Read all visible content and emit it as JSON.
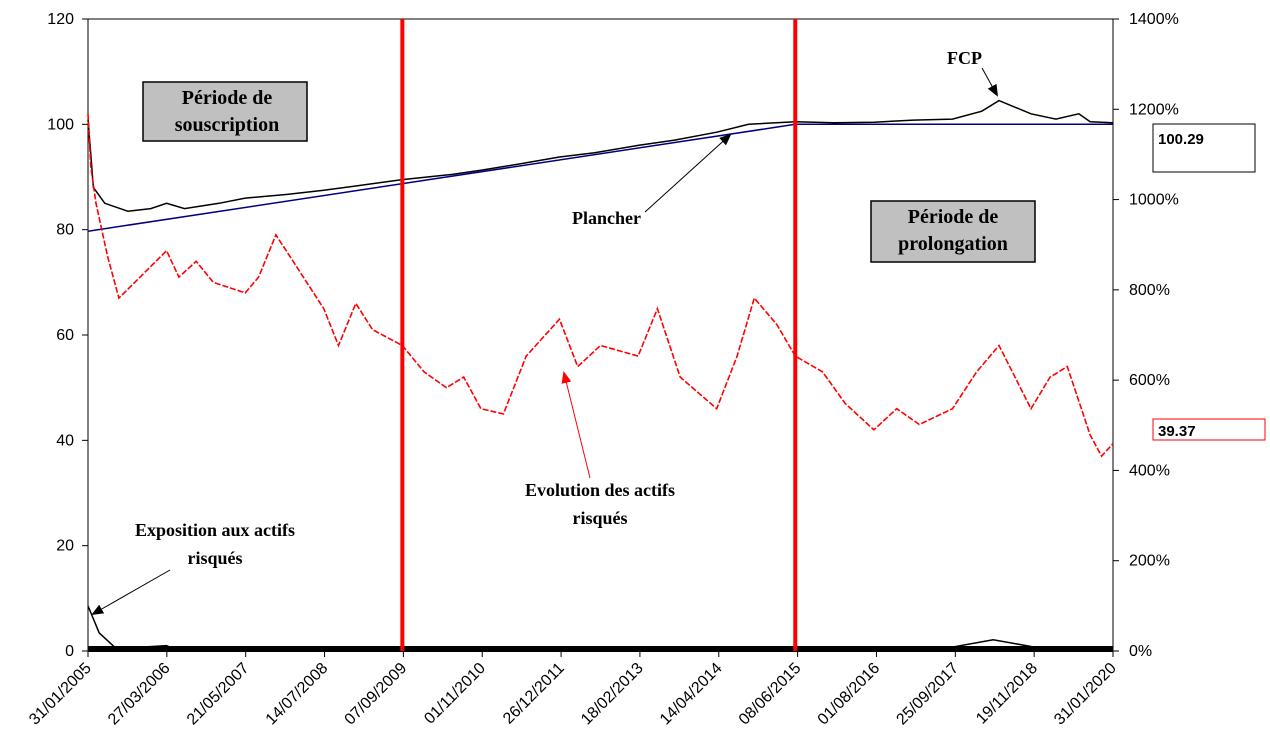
{
  "chart_data": {
    "type": "line",
    "x_tick_labels": [
      "31/01/2005",
      "27/03/2006",
      "21/05/2007",
      "14/07/2008",
      "07/09/2009",
      "01/11/2010",
      "26/12/2011",
      "18/02/2013",
      "14/04/2014",
      "08/06/2015",
      "01/08/2016",
      "25/09/2017",
      "19/11/2018",
      "31/01/2020"
    ],
    "y_left": {
      "ylim": [
        0,
        120
      ],
      "ticks": [
        0,
        20,
        40,
        60,
        80,
        100,
        120
      ]
    },
    "y_right": {
      "ylim": [
        0,
        14
      ],
      "ticks": [
        "0%",
        "200%",
        "400%",
        "600%",
        "800%",
        "1000%",
        "1200%",
        "1400%"
      ]
    },
    "series": [
      {
        "name": "FCP",
        "axis": "left",
        "color": "#000000",
        "points": [
          [
            "31/01/2005",
            101
          ],
          [
            "01/03/2005",
            88
          ],
          [
            "01/05/2005",
            85
          ],
          [
            "01/09/2005",
            83.5
          ],
          [
            "01/01/2006",
            84
          ],
          [
            "27/03/2006",
            85
          ],
          [
            "01/07/2006",
            84
          ],
          [
            "01/01/2007",
            85
          ],
          [
            "21/05/2007",
            86
          ],
          [
            "01/01/2008",
            86.7
          ],
          [
            "14/07/2008",
            87.5
          ],
          [
            "01/01/2009",
            88.3
          ],
          [
            "07/09/2009",
            89.5
          ],
          [
            "01/06/2010",
            90.5
          ],
          [
            "01/11/2010",
            91.3
          ],
          [
            "01/06/2011",
            92.5
          ],
          [
            "26/12/2011",
            93.8
          ],
          [
            "01/07/2012",
            94.6
          ],
          [
            "18/02/2013",
            96
          ],
          [
            "01/09/2013",
            97
          ],
          [
            "14/04/2014",
            98.5
          ],
          [
            "01/10/2014",
            100
          ],
          [
            "08/06/2015",
            100.5
          ],
          [
            "01/01/2016",
            100.3
          ],
          [
            "01/08/2016",
            100.4
          ],
          [
            "01/03/2017",
            100.8
          ],
          [
            "25/09/2017",
            101
          ],
          [
            "01/03/2018",
            102.5
          ],
          [
            "01/06/2018",
            104.5
          ],
          [
            "19/11/2018",
            102
          ],
          [
            "01/04/2019",
            101
          ],
          [
            "01/08/2019",
            102
          ],
          [
            "01/10/2019",
            100.5
          ],
          [
            "31/01/2020",
            100.29
          ]
        ],
        "last_value": "100.29"
      },
      {
        "name": "Plancher",
        "axis": "left",
        "color": "#000080",
        "points": [
          [
            "31/01/2005",
            79.7
          ],
          [
            "08/06/2015",
            100
          ],
          [
            "31/01/2020",
            100
          ]
        ]
      },
      {
        "name": "Evolution des actifs risqués",
        "axis": "left",
        "color": "#ff0000",
        "points": [
          [
            "31/01/2005",
            102
          ],
          [
            "15/02/2005",
            92
          ],
          [
            "15/03/2005",
            85
          ],
          [
            "15/05/2005",
            75
          ],
          [
            "15/07/2005",
            67
          ],
          [
            "27/03/2006",
            76
          ],
          [
            "01/06/2006",
            71
          ],
          [
            "01/09/2006",
            74
          ],
          [
            "01/12/2006",
            70
          ],
          [
            "21/05/2007",
            68
          ],
          [
            "01/08/2007",
            71
          ],
          [
            "01/11/2007",
            79
          ],
          [
            "01/02/2008",
            74
          ],
          [
            "14/07/2008",
            65
          ],
          [
            "01/10/2008",
            58
          ],
          [
            "01/01/2009",
            66
          ],
          [
            "01/04/2009",
            61
          ],
          [
            "07/09/2009",
            58
          ],
          [
            "01/01/2010",
            53
          ],
          [
            "01/05/2010",
            50
          ],
          [
            "01/08/2010",
            52
          ],
          [
            "01/11/2010",
            46
          ],
          [
            "01/03/2011",
            45
          ],
          [
            "01/07/2011",
            56
          ],
          [
            "26/12/2011",
            63
          ],
          [
            "01/04/2012",
            54
          ],
          [
            "01/08/2012",
            58
          ],
          [
            "18/02/2013",
            56
          ],
          [
            "01/06/2013",
            65
          ],
          [
            "01/10/2013",
            52
          ],
          [
            "14/04/2014",
            46
          ],
          [
            "01/08/2014",
            56
          ],
          [
            "01/11/2014",
            67
          ],
          [
            "01/03/2015",
            62
          ],
          [
            "08/06/2015",
            56
          ],
          [
            "01/11/2015",
            53
          ],
          [
            "01/03/2016",
            47
          ],
          [
            "01/08/2016",
            42
          ],
          [
            "01/12/2016",
            46
          ],
          [
            "01/04/2017",
            43
          ],
          [
            "25/09/2017",
            46
          ],
          [
            "01/02/2018",
            53
          ],
          [
            "01/06/2018",
            58
          ],
          [
            "19/11/2018",
            46
          ],
          [
            "01/03/2019",
            52
          ],
          [
            "01/06/2019",
            54
          ],
          [
            "01/10/2019",
            41
          ],
          [
            "01/12/2019",
            37
          ],
          [
            "31/01/2020",
            39.37
          ]
        ],
        "last_value": "39.37"
      },
      {
        "name": "Exposition aux actifs risqués",
        "axis": "right",
        "color": "#000000",
        "points": [
          [
            "31/01/2005",
            1.0
          ],
          [
            "01/04/2005",
            0.4
          ],
          [
            "01/07/2005",
            0.05
          ],
          [
            "27/03/2006",
            0.12
          ],
          [
            "01/06/2006",
            0.0
          ],
          [
            "01/06/2017",
            0.0
          ],
          [
            "01/05/2018",
            0.25
          ],
          [
            "19/11/2018",
            0.1
          ],
          [
            "01/01/2019",
            0.0
          ],
          [
            "31/01/2020",
            0.0
          ]
        ]
      }
    ],
    "vertical_lines": [
      {
        "date": "07/09/2009",
        "color": "#ff0000"
      },
      {
        "date": "08/06/2015",
        "color": "#ff0000"
      }
    ],
    "annotations": {
      "fcp": "FCP",
      "plancher": "Plancher",
      "evolution_line1": "Evolution des actifs",
      "evolution_line2": "risqués",
      "exposition_line1": "Exposition aux actifs",
      "exposition_line2": "risqués"
    },
    "boxes": {
      "souscription_line1": "Période de",
      "souscription_line2": "souscription",
      "prolongation_line1": "Période de",
      "prolongation_line2": "prolongation"
    },
    "value_boxes": {
      "fcp_value": "100.29",
      "actifs_value": "39.37"
    },
    "colors": {
      "box_fill": "#c0c0c0",
      "red": "#ff0000",
      "navy": "#000080"
    }
  }
}
